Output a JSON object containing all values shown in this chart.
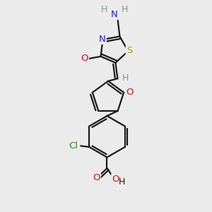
{
  "bg_color": "#ebebeb",
  "bond_color": "#1a1a1a",
  "bond_width": 1.6,
  "dbo": 0.13,
  "atom_colors": {
    "S": "#b8a000",
    "N": "#2020cc",
    "N_imino": "#2020cc",
    "O": "#cc1111",
    "Cl": "#228822",
    "H": "#7a9a9a"
  },
  "font_size": 9.5,
  "fig_size": [
    3.0,
    3.0
  ],
  "dpi": 100
}
